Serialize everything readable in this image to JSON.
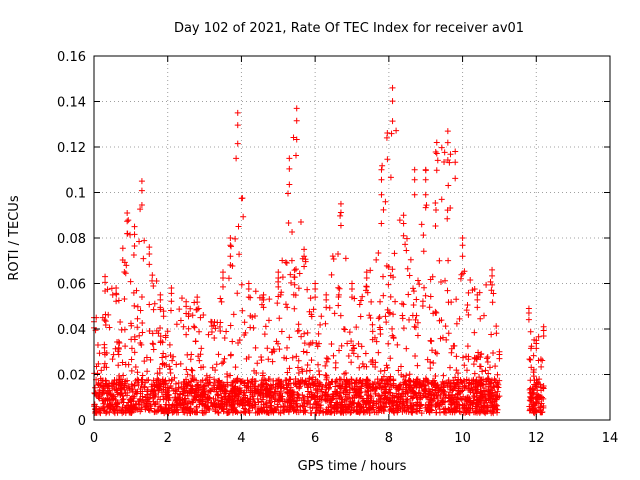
{
  "chart_data": {
    "type": "scatter",
    "title": "Day 102 of 2021, Rate Of TEC Index for receiver av01",
    "xlabel": "GPS time / hours",
    "ylabel": "ROTI / TECUs",
    "xlim": [
      0,
      14
    ],
    "ylim": [
      0,
      0.16
    ],
    "xticks": [
      "0",
      "2",
      "4",
      "6",
      "8",
      "10",
      "12",
      "14"
    ],
    "yticks": [
      "0",
      "0.02",
      "0.04",
      "0.06",
      "0.08",
      "0.1",
      "0.12",
      "0.14",
      "0.16"
    ],
    "grid": true,
    "marker": "plus",
    "color": "#ff0000",
    "data_segments": [
      {
        "x_start": 0.0,
        "x_end": 11.0
      },
      {
        "x_start": 11.8,
        "x_end": 12.2
      }
    ],
    "envelope": [
      {
        "x": 0.0,
        "y": 0.045
      },
      {
        "x": 0.3,
        "y": 0.063
      },
      {
        "x": 0.6,
        "y": 0.058
      },
      {
        "x": 0.9,
        "y": 0.091
      },
      {
        "x": 1.1,
        "y": 0.085
      },
      {
        "x": 1.3,
        "y": 0.105
      },
      {
        "x": 1.5,
        "y": 0.076
      },
      {
        "x": 1.8,
        "y": 0.055
      },
      {
        "x": 2.1,
        "y": 0.058
      },
      {
        "x": 2.5,
        "y": 0.052
      },
      {
        "x": 2.8,
        "y": 0.054
      },
      {
        "x": 3.2,
        "y": 0.043
      },
      {
        "x": 3.5,
        "y": 0.065
      },
      {
        "x": 3.7,
        "y": 0.08
      },
      {
        "x": 3.9,
        "y": 0.135
      },
      {
        "x": 4.2,
        "y": 0.06
      },
      {
        "x": 4.6,
        "y": 0.055
      },
      {
        "x": 5.0,
        "y": 0.065
      },
      {
        "x": 5.3,
        "y": 0.115
      },
      {
        "x": 5.5,
        "y": 0.137
      },
      {
        "x": 5.7,
        "y": 0.075
      },
      {
        "x": 6.0,
        "y": 0.06
      },
      {
        "x": 6.3,
        "y": 0.055
      },
      {
        "x": 6.7,
        "y": 0.095
      },
      {
        "x": 7.0,
        "y": 0.06
      },
      {
        "x": 7.4,
        "y": 0.065
      },
      {
        "x": 7.8,
        "y": 0.11
      },
      {
        "x": 8.1,
        "y": 0.146
      },
      {
        "x": 8.4,
        "y": 0.09
      },
      {
        "x": 8.7,
        "y": 0.11
      },
      {
        "x": 9.0,
        "y": 0.11
      },
      {
        "x": 9.3,
        "y": 0.122
      },
      {
        "x": 9.6,
        "y": 0.127
      },
      {
        "x": 9.8,
        "y": 0.118
      },
      {
        "x": 10.0,
        "y": 0.08
      },
      {
        "x": 10.4,
        "y": 0.055
      },
      {
        "x": 10.8,
        "y": 0.066
      },
      {
        "x": 11.0,
        "y": 0.03
      },
      {
        "x": 11.8,
        "y": 0.049
      },
      {
        "x": 12.0,
        "y": 0.035
      },
      {
        "x": 12.2,
        "y": 0.041
      }
    ],
    "baseline_range": [
      0.003,
      0.018
    ]
  }
}
